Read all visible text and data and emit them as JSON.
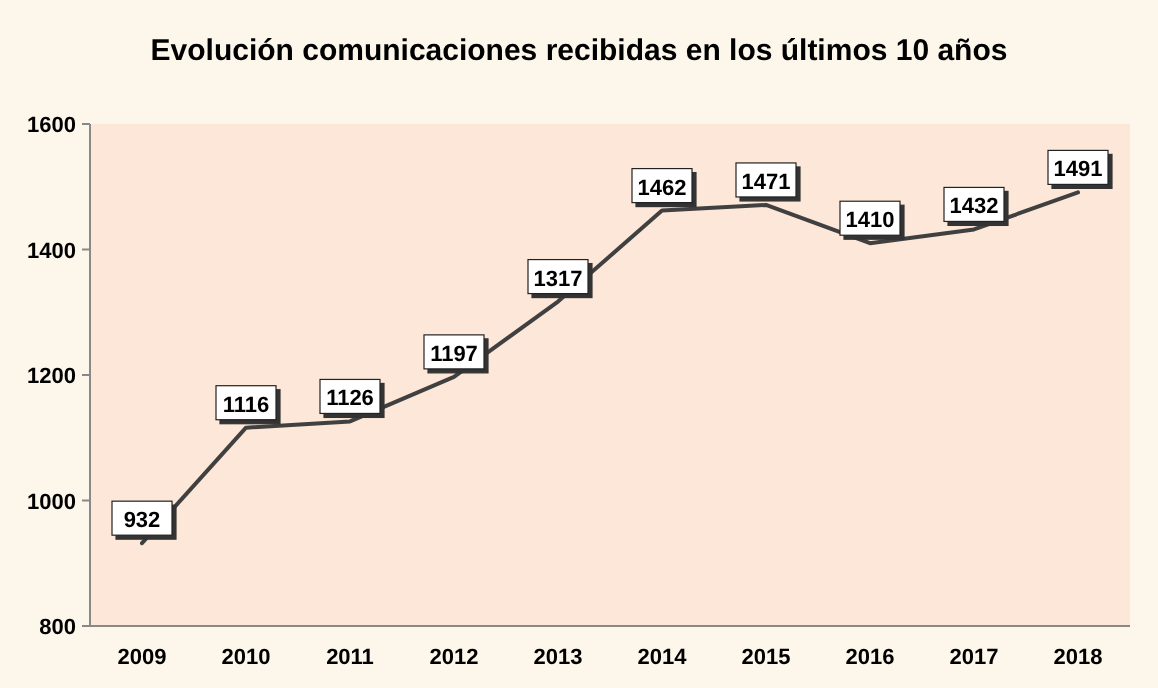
{
  "chart_data": {
    "type": "line",
    "title": "Evolución comunicaciones recibidas en los últimos 10 años",
    "categories": [
      "2009",
      "2010",
      "2011",
      "2012",
      "2013",
      "2014",
      "2015",
      "2016",
      "2017",
      "2018"
    ],
    "series": [
      {
        "color": "#404040",
        "values": [
          932,
          1116,
          1126,
          1197,
          1317,
          1462,
          1471,
          1410,
          1432,
          1491
        ]
      }
    ],
    "ylim": [
      800,
      1600
    ],
    "yticks": [
      800,
      1000,
      1200,
      1400,
      1600
    ],
    "marker": "none",
    "data_labels": true
  }
}
